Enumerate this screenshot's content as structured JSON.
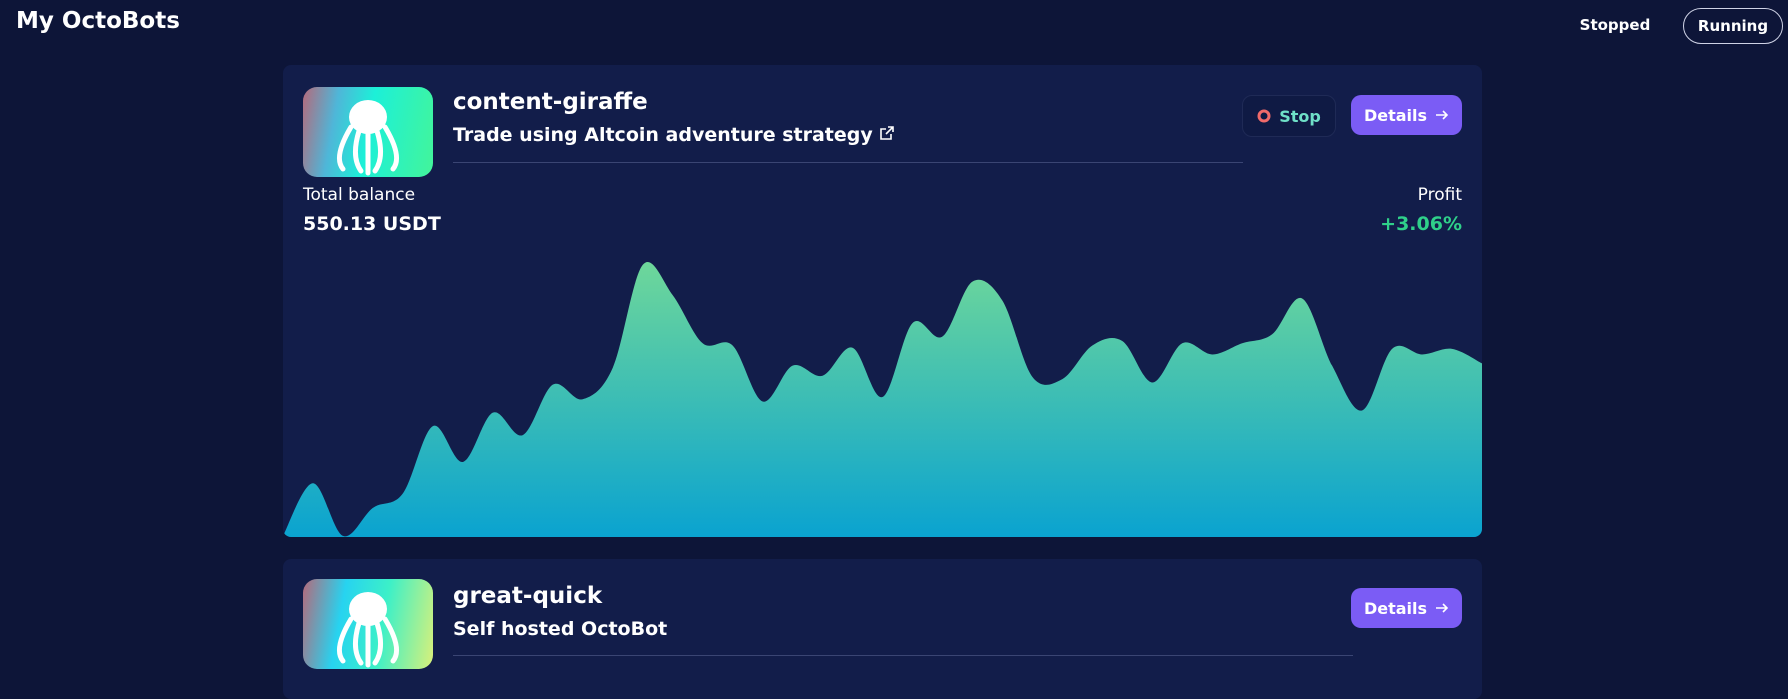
{
  "header": {
    "title": "My OctoBots",
    "tabs": [
      "Stopped",
      "Running"
    ]
  },
  "bots": [
    {
      "name": "content-giraffe",
      "description": "Trade using Altcoin adventure strategy",
      "stop": "Stop",
      "details": "Details",
      "balance_label": "Total balance",
      "balance": "550.13 USDT",
      "profit_label": "Profit",
      "profit": "+3.06%",
      "chart_data": {
        "type": "area",
        "values": [
          1,
          48,
          1,
          26,
          39,
          99,
          67,
          111,
          91,
          136,
          123,
          151,
          243,
          216,
          173,
          171,
          121,
          153,
          144,
          169,
          125,
          191,
          179,
          228,
          211,
          143,
          141,
          171,
          175,
          138,
          173,
          163,
          173,
          181,
          213,
          153,
          113,
          168,
          163,
          168,
          155
        ],
        "ylim": [
          0,
          250
        ],
        "colors": [
          "#6ed79a",
          "#0aa3d0"
        ]
      }
    },
    {
      "name": "great-quick",
      "description": "Self hosted OctoBot",
      "details": "Details"
    }
  ]
}
